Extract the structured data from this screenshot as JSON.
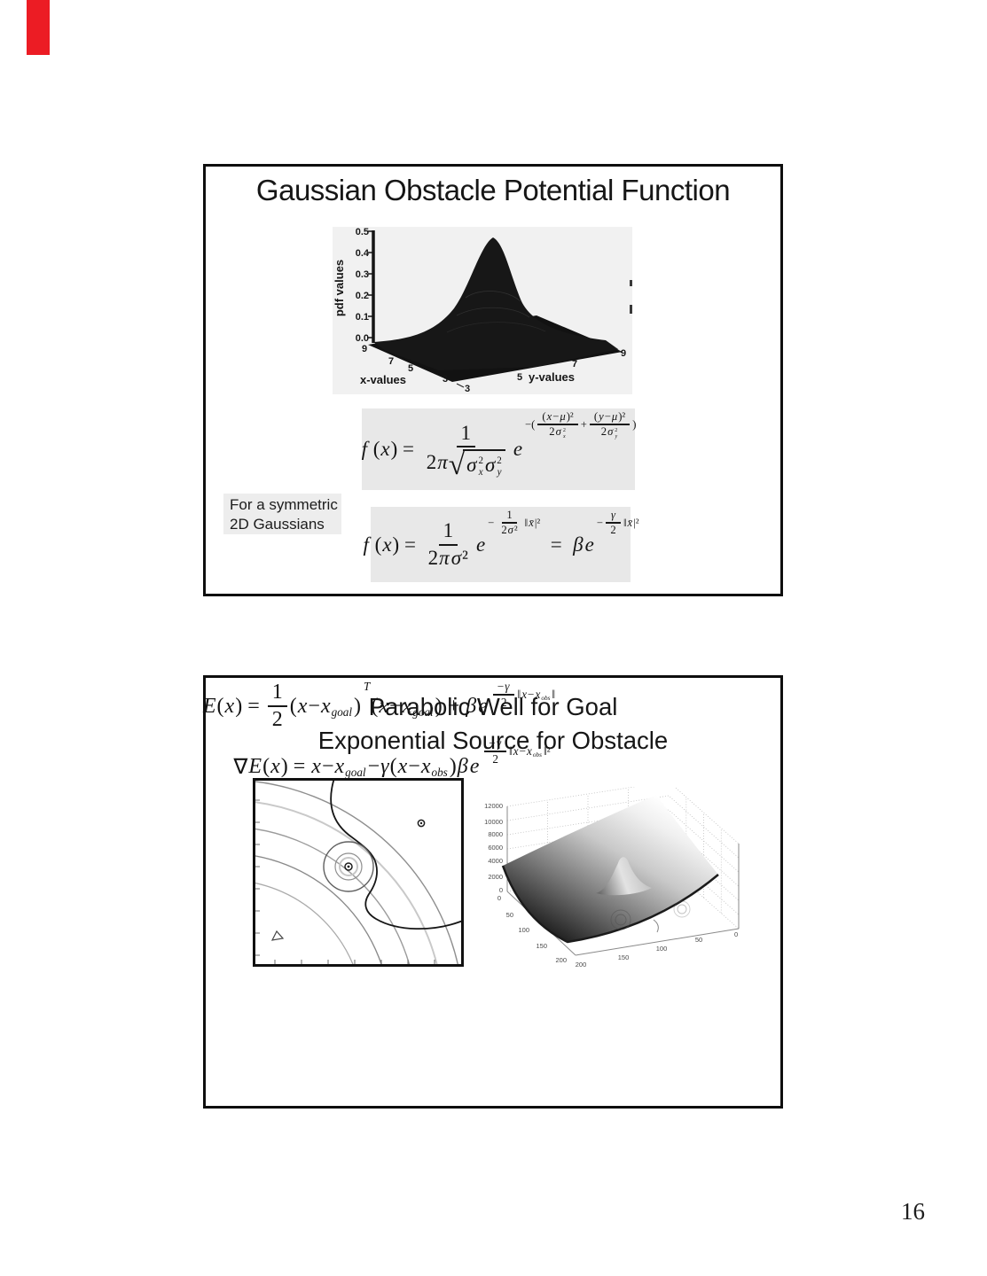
{
  "page": {
    "number": "16"
  },
  "marker": {
    "color": "#ec1c24"
  },
  "math": {
    "radical": "√"
  },
  "slide1": {
    "title": "Gaussian Obstacle Potential Function",
    "side_label": {
      "line1": "For a symmetric",
      "line2": "2D Gaussians"
    },
    "plot": {
      "type": "3d-surface",
      "zlabel": "pdf values",
      "xlabel": "x-values",
      "ylabel": "y-values",
      "z_ticks": [
        "0.5",
        "0.4",
        "0.3",
        "0.2",
        "0.1",
        "0.0"
      ],
      "x_ticks": [
        "9",
        "7",
        "5",
        "3"
      ],
      "y_ticks": [
        "3",
        "5",
        "7",
        "9"
      ]
    },
    "formulas": {
      "f1": {
        "tokens": [
          {
            "i": "f"
          },
          {
            "s": " ("
          },
          {
            "i": "x"
          },
          {
            "s": ") = "
          },
          {
            "frac": {
              "n": [
                {
                  "s": "1"
                }
              ],
              "d": [
                {
                  "s": "2"
                },
                {
                  "i": "π"
                },
                {
                  "sqrt": [
                    {
                      "ss": {
                        "b": "σ",
                        "sup": "2",
                        "sub": "x"
                      }
                    },
                    {
                      "ss": {
                        "b": "σ",
                        "sup": "2",
                        "sub": "y"
                      }
                    }
                  ]
                }
              ]
            }
          },
          {
            "i": "e"
          },
          {
            "sup": [
              {
                "s": "−("
              },
              {
                "frac": {
                  "n": [
                    {
                      "s": "("
                    },
                    {
                      "i": "x"
                    },
                    {
                      "s": "−"
                    },
                    {
                      "i": "μ"
                    },
                    {
                      "s": ")²"
                    }
                  ],
                  "d": [
                    {
                      "s": "2"
                    },
                    {
                      "ss": {
                        "b": "σ",
                        "sup": "2",
                        "sub": "x"
                      }
                    }
                  ]
                }
              },
              {
                "s": "+"
              },
              {
                "frac": {
                  "n": [
                    {
                      "s": "("
                    },
                    {
                      "i": "y"
                    },
                    {
                      "s": "−"
                    },
                    {
                      "i": "μ"
                    },
                    {
                      "s": ")²"
                    }
                  ],
                  "d": [
                    {
                      "s": "2"
                    },
                    {
                      "ss": {
                        "b": "σ",
                        "sup": "2",
                        "sub": "y"
                      }
                    }
                  ]
                }
              },
              {
                "s": ")"
              }
            ]
          }
        ]
      },
      "f2": {
        "tokens": [
          {
            "i": "f"
          },
          {
            "s": " ("
          },
          {
            "i": "x"
          },
          {
            "s": ") = "
          },
          {
            "frac": {
              "n": [
                {
                  "s": "1"
                }
              ],
              "d": [
                {
                  "s": "2"
                },
                {
                  "i": "π"
                },
                {
                  "i": "σ"
                },
                {
                  "s": "²"
                }
              ]
            }
          },
          {
            "i": "e"
          },
          {
            "sup": [
              {
                "s": "−"
              },
              {
                "frac": {
                  "n": [
                    {
                      "s": "1"
                    }
                  ],
                  "d": [
                    {
                      "s": "2"
                    },
                    {
                      "i": "σ"
                    },
                    {
                      "s": "²"
                    }
                  ]
                }
              },
              {
                "s": "‖"
              },
              {
                "i": "x̄"
              },
              {
                "s": "|²"
              }
            ]
          },
          {
            "s": "  =  "
          },
          {
            "i": "β"
          },
          {
            "i": "e"
          },
          {
            "sup": [
              {
                "s": "−"
              },
              {
                "frac": {
                  "n": [
                    {
                      "i": "γ"
                    }
                  ],
                  "d": [
                    {
                      "s": "2"
                    }
                  ]
                }
              },
              {
                "s": "‖"
              },
              {
                "i": "x̄"
              },
              {
                "s": "|²"
              }
            ]
          }
        ]
      }
    }
  },
  "slide2": {
    "title_line1": "Parabolic Well for Goal",
    "title_line2": "Exponential Source for Obstacle",
    "surface": {
      "type": "3d-surface",
      "z_ticks": [
        "12000",
        "10000",
        "8000",
        "6000",
        "4000",
        "2000",
        "0"
      ],
      "x_ticks": [
        "0",
        "50",
        "100",
        "150",
        "200"
      ],
      "y_ticks": [
        "200",
        "150",
        "100",
        "50",
        "0"
      ]
    },
    "formulas": {
      "f3": {
        "tokens": [
          {
            "i": "E"
          },
          {
            "s": "("
          },
          {
            "i": "x"
          },
          {
            "s": ") = "
          },
          {
            "frac": {
              "n": [
                {
                  "s": "1"
                }
              ],
              "d": [
                {
                  "s": "2"
                }
              ]
            }
          },
          {
            "s": "("
          },
          {
            "i": "x"
          },
          {
            "s": "−"
          },
          {
            "i": "x"
          },
          {
            "sub": "goal"
          },
          {
            "s": ")"
          },
          {
            "sup": [
              {
                "i": "T"
              }
            ]
          },
          {
            "s": "("
          },
          {
            "i": "x"
          },
          {
            "s": "−"
          },
          {
            "i": "x"
          },
          {
            "sub": "goal"
          },
          {
            "s": ") + "
          },
          {
            "i": "β"
          },
          {
            "i": "e"
          },
          {
            "sup": [
              {
                "frac": {
                  "n": [
                    {
                      "s": "−"
                    },
                    {
                      "i": "γ"
                    }
                  ],
                  "d": [
                    {
                      "s": "2"
                    }
                  ]
                }
              },
              {
                "s": "‖"
              },
              {
                "i": "x"
              },
              {
                "s": "−"
              },
              {
                "i": "x"
              },
              {
                "sub": "obs"
              },
              {
                "s": "‖"
              }
            ]
          }
        ]
      },
      "f4": {
        "tokens": [
          {
            "s": "∇"
          },
          {
            "i": "E"
          },
          {
            "s": "("
          },
          {
            "i": "x"
          },
          {
            "s": ") = "
          },
          {
            "i": "x"
          },
          {
            "s": "−"
          },
          {
            "i": "x"
          },
          {
            "sub": "goal"
          },
          {
            "s": "−"
          },
          {
            "i": "γ"
          },
          {
            "s": "("
          },
          {
            "i": "x"
          },
          {
            "s": "−"
          },
          {
            "i": "x"
          },
          {
            "sub": "obs"
          },
          {
            "s": ")"
          },
          {
            "i": "β"
          },
          {
            "i": "e"
          },
          {
            "sup": [
              {
                "frac": {
                  "n": [
                    {
                      "s": "−"
                    },
                    {
                      "i": "γ"
                    }
                  ],
                  "d": [
                    {
                      "s": "2"
                    }
                  ]
                }
              },
              {
                "s": "‖"
              },
              {
                "i": "x"
              },
              {
                "s": "−"
              },
              {
                "i": "x"
              },
              {
                "sub": "obs"
              },
              {
                "s": "‖²"
              }
            ]
          }
        ]
      }
    }
  }
}
